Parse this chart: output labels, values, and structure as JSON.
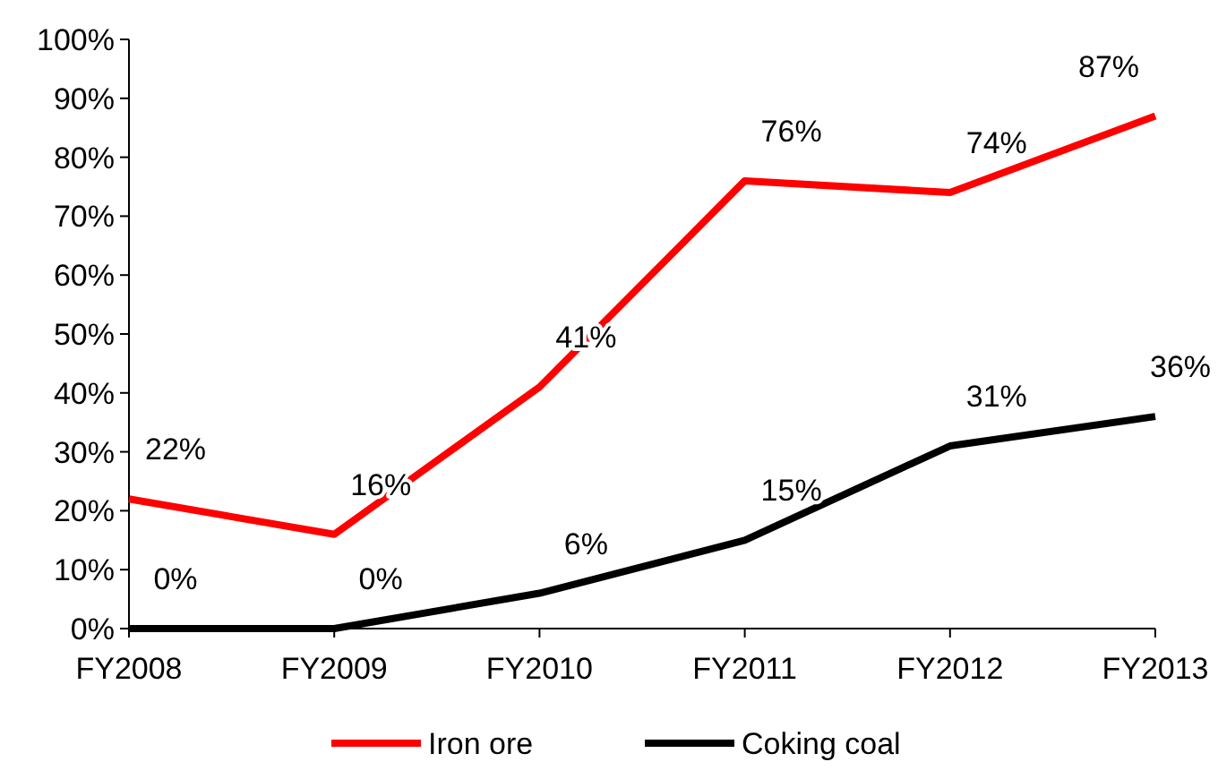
{
  "chart_data": {
    "type": "line",
    "categories": [
      "FY2008",
      "FY2009",
      "FY2010",
      "FY2011",
      "FY2012",
      "FY2013"
    ],
    "series": [
      {
        "name": "Iron ore",
        "color": "#ff0000",
        "values": [
          22,
          16,
          41,
          76,
          74,
          87
        ],
        "value_labels": [
          "22%",
          "16%",
          "41%",
          "76%",
          "74%",
          "87%"
        ]
      },
      {
        "name": "Coking coal",
        "color": "#000000",
        "values": [
          0,
          0,
          6,
          15,
          31,
          36
        ],
        "value_labels": [
          "0%",
          "0%",
          "6%",
          "15%",
          "31%",
          "36%"
        ]
      }
    ],
    "ylim": [
      0,
      100
    ],
    "yticks": [
      {
        "value": 0,
        "label": "0%"
      },
      {
        "value": 10,
        "label": "10%"
      },
      {
        "value": 20,
        "label": "20%"
      },
      {
        "value": 30,
        "label": "30%"
      },
      {
        "value": 40,
        "label": "40%"
      },
      {
        "value": 50,
        "label": "50%"
      },
      {
        "value": 60,
        "label": "60%"
      },
      {
        "value": 70,
        "label": "70%"
      },
      {
        "value": 80,
        "label": "80%"
      },
      {
        "value": 90,
        "label": "90%"
      },
      {
        "value": 100,
        "label": "100%"
      }
    ],
    "grid": false,
    "legend": "bottom",
    "marker": "none",
    "line_style": "solid"
  }
}
